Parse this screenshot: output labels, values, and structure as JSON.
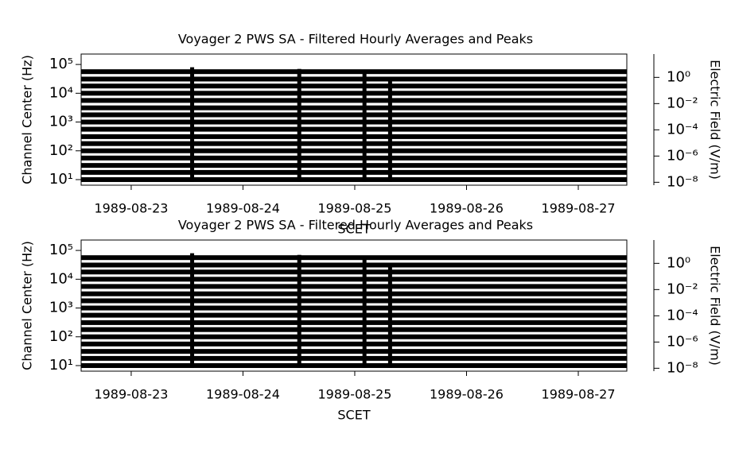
{
  "chart_data": [
    {
      "type": "spectrogram",
      "title": "Voyager 2 PWS SA - Filtered Hourly Averages and Peaks",
      "xlabel": "SCET",
      "ylabel": "Channel Center (Hz)",
      "y2label": "Electric Field (V/m)",
      "xlim": [
        "1989-08-22T13:15",
        "1989-08-27T10:25"
      ],
      "xticks": [
        "1989-08-23",
        "1989-08-24",
        "1989-08-25",
        "1989-08-26",
        "1989-08-27"
      ],
      "yscale": "log",
      "ylim": [
        6.4,
        230000
      ],
      "yticks": [
        {
          "value": 10,
          "label": "10¹"
        },
        {
          "value": 100,
          "label": "10²"
        },
        {
          "value": 1000,
          "label": "10³"
        },
        {
          "value": 10000,
          "label": "10⁴"
        },
        {
          "value": 100000,
          "label": "10⁵"
        }
      ],
      "y2lim": [
        6e-09,
        60
      ],
      "y2ticks": [
        {
          "value": 1,
          "label": "10⁰"
        },
        {
          "value": 0.01,
          "label": "10⁻²"
        },
        {
          "value": 0.0001,
          "label": "10⁻⁴"
        },
        {
          "value": 1e-06,
          "label": "10⁻⁶"
        },
        {
          "value": 1e-08,
          "label": "10⁻⁸"
        }
      ],
      "channels": [
        10,
        17.8,
        31.1,
        56.2,
        100,
        178,
        311,
        562,
        1000,
        1780,
        3110,
        5620,
        10000,
        17800,
        31100,
        56200
      ],
      "bursts": {
        "x": [
          "1989-08-23T13:00",
          "1989-08-24T12:00",
          "1989-08-25T02:00",
          "1989-08-25T07:30"
        ],
        "top": [
          80000,
          70000,
          60000,
          30000
        ]
      },
      "color": "#000000"
    },
    {
      "type": "spectrogram",
      "title": "Voyager 2 PWS SA - Filtered Hourly Averages and Peaks",
      "xlabel": "SCET",
      "ylabel": "Channel Center (Hz)",
      "y2label": "Electric Field (V/m)",
      "xlim": [
        "1989-08-22T13:15",
        "1989-08-27T10:25"
      ],
      "xticks": [
        "1989-08-23",
        "1989-08-24",
        "1989-08-25",
        "1989-08-26",
        "1989-08-27"
      ],
      "yscale": "log",
      "ylim": [
        6.4,
        230000
      ],
      "yticks": [
        {
          "value": 10,
          "label": "10¹"
        },
        {
          "value": 100,
          "label": "10²"
        },
        {
          "value": 1000,
          "label": "10³"
        },
        {
          "value": 10000,
          "label": "10⁴"
        },
        {
          "value": 100000,
          "label": "10⁵"
        }
      ],
      "y2lim": [
        6e-09,
        60
      ],
      "y2ticks": [
        {
          "value": 1,
          "label": "10⁰"
        },
        {
          "value": 0.01,
          "label": "10⁻²"
        },
        {
          "value": 0.0001,
          "label": "10⁻⁴"
        },
        {
          "value": 1e-06,
          "label": "10⁻⁶"
        },
        {
          "value": 1e-08,
          "label": "10⁻⁸"
        }
      ],
      "channels": [
        10,
        17.8,
        31.1,
        56.2,
        100,
        178,
        311,
        562,
        1000,
        1780,
        3110,
        5620,
        10000,
        17800,
        31100,
        56200
      ],
      "bursts": {
        "x": [
          "1989-08-23T13:00",
          "1989-08-24T12:00",
          "1989-08-25T02:00",
          "1989-08-25T07:30"
        ],
        "top": [
          80000,
          70000,
          60000,
          30000
        ]
      },
      "color": "#000000"
    }
  ]
}
